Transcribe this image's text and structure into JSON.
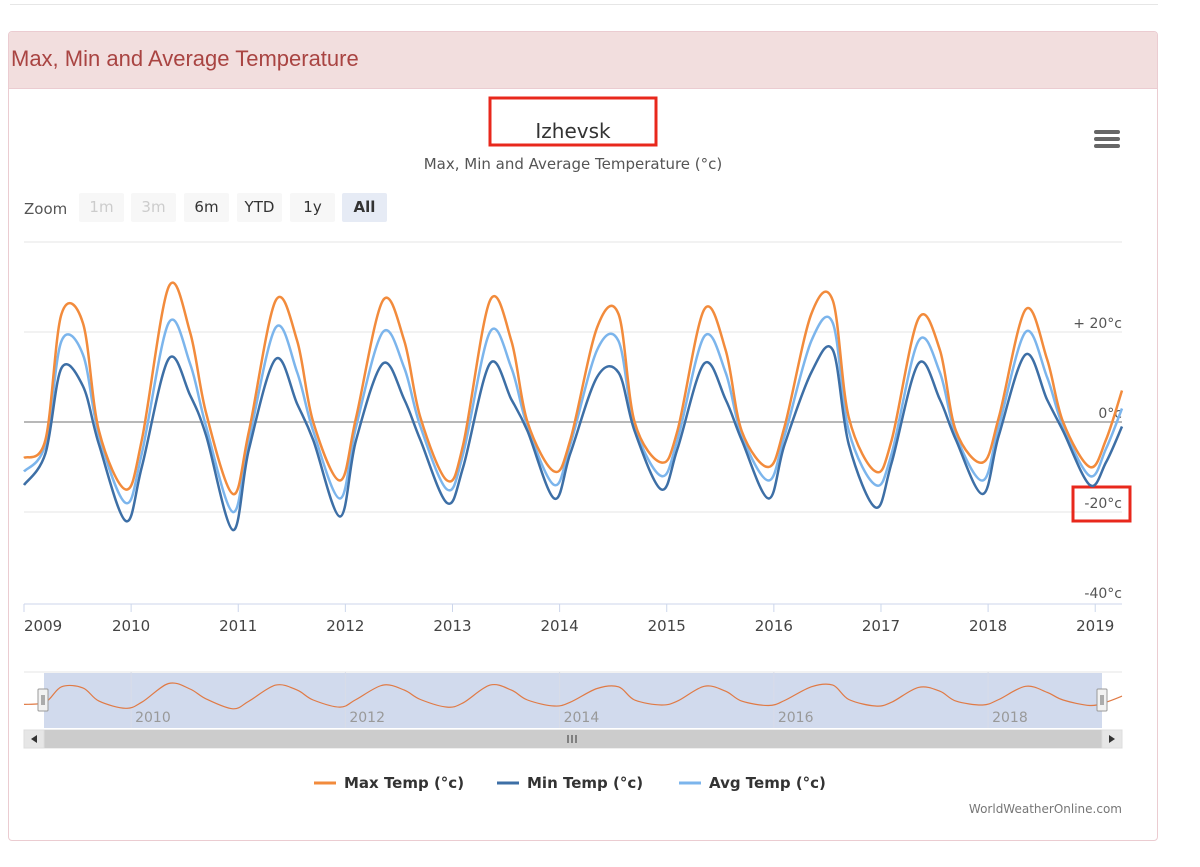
{
  "panel": {
    "title": "Max, Min and Average Temperature"
  },
  "chart_data": {
    "type": "line",
    "title": "Izhevsk",
    "subtitle": "Max, Min and Average Temperature (°c)",
    "zoom": {
      "label": "Zoom",
      "buttons": [
        "1m",
        "3m",
        "6m",
        "YTD",
        "1y",
        "All"
      ],
      "disabled": [
        "1m",
        "3m"
      ],
      "selected": "All"
    },
    "y_ticks": [
      {
        "value": 20,
        "label": "+ 20°c"
      },
      {
        "value": 0,
        "label": "0°c"
      },
      {
        "value": -20,
        "label": "-20°c"
      },
      {
        "value": -40,
        "label": "-40°c"
      }
    ],
    "ylim": [
      -40,
      40
    ],
    "xlim": [
      2009.0,
      2019.25
    ],
    "x_ticks": [
      "2009",
      "2010",
      "2011",
      "2012",
      "2013",
      "2014",
      "2015",
      "2016",
      "2017",
      "2018",
      "2019"
    ],
    "navigator_labels": [
      "2010",
      "2012",
      "2014",
      "2016",
      "2018"
    ],
    "series": [
      {
        "name": "Max Temp (°c)",
        "color": "#f28b3c"
      },
      {
        "name": "Min Temp (°c)",
        "color": "#3d6fa6"
      },
      {
        "name": "Avg Temp (°c)",
        "color": "#7cb5ec"
      }
    ],
    "x": [
      2009.0,
      2009.2,
      2009.35,
      2009.55,
      2009.7,
      2009.95,
      2010.1,
      2010.35,
      2010.55,
      2010.7,
      2010.95,
      2011.1,
      2011.35,
      2011.55,
      2011.7,
      2011.95,
      2012.1,
      2012.35,
      2012.55,
      2012.7,
      2012.95,
      2013.1,
      2013.35,
      2013.55,
      2013.7,
      2013.95,
      2014.1,
      2014.35,
      2014.55,
      2014.7,
      2014.95,
      2015.1,
      2015.35,
      2015.55,
      2015.7,
      2015.95,
      2016.1,
      2016.35,
      2016.55,
      2016.7,
      2016.95,
      2017.1,
      2017.35,
      2017.55,
      2017.7,
      2017.95,
      2018.1,
      2018.35,
      2018.55,
      2018.7,
      2018.95,
      2019.1,
      2019.25
    ],
    "max_temp": [
      -8,
      -4,
      24,
      22,
      -2,
      -15,
      -4,
      30,
      20,
      2,
      -16,
      -2,
      27,
      18,
      0,
      -13,
      1,
      27,
      18,
      1,
      -13,
      -5,
      27,
      18,
      0,
      -11,
      -4,
      21,
      24,
      0,
      -9,
      -2,
      25,
      16,
      -2,
      -10,
      -1,
      24,
      27,
      1,
      -11,
      -4,
      23,
      16,
      -2,
      -9,
      1,
      25,
      14,
      0,
      -10,
      -4,
      7
    ],
    "min_temp": [
      -14,
      -7,
      12,
      8,
      -5,
      -22,
      -10,
      14,
      6,
      -3,
      -24,
      -6,
      14,
      4,
      -4,
      -21,
      -4,
      13,
      5,
      -4,
      -18,
      -10,
      13,
      5,
      -2,
      -17,
      -7,
      10,
      11,
      -2,
      -15,
      -6,
      13,
      5,
      -4,
      -17,
      -5,
      11,
      16,
      -5,
      -19,
      -9,
      13,
      5,
      -4,
      -16,
      -3,
      15,
      5,
      -2,
      -14,
      -9,
      -1
    ],
    "avg_temp": [
      -11,
      -5,
      18,
      15,
      -3,
      -18,
      -7,
      22,
      13,
      -1,
      -20,
      -4,
      21,
      11,
      -2,
      -17,
      -1,
      20,
      12,
      -1,
      -15,
      -7,
      20,
      12,
      -1,
      -14,
      -5,
      16,
      18,
      -1,
      -12,
      -4,
      19,
      11,
      -3,
      -13,
      -3,
      18,
      22,
      -2,
      -14,
      -7,
      18,
      11,
      -3,
      -13,
      -1,
      20,
      10,
      -1,
      -12,
      -6,
      3
    ]
  },
  "credit": "WorldWeatherOnline.com"
}
